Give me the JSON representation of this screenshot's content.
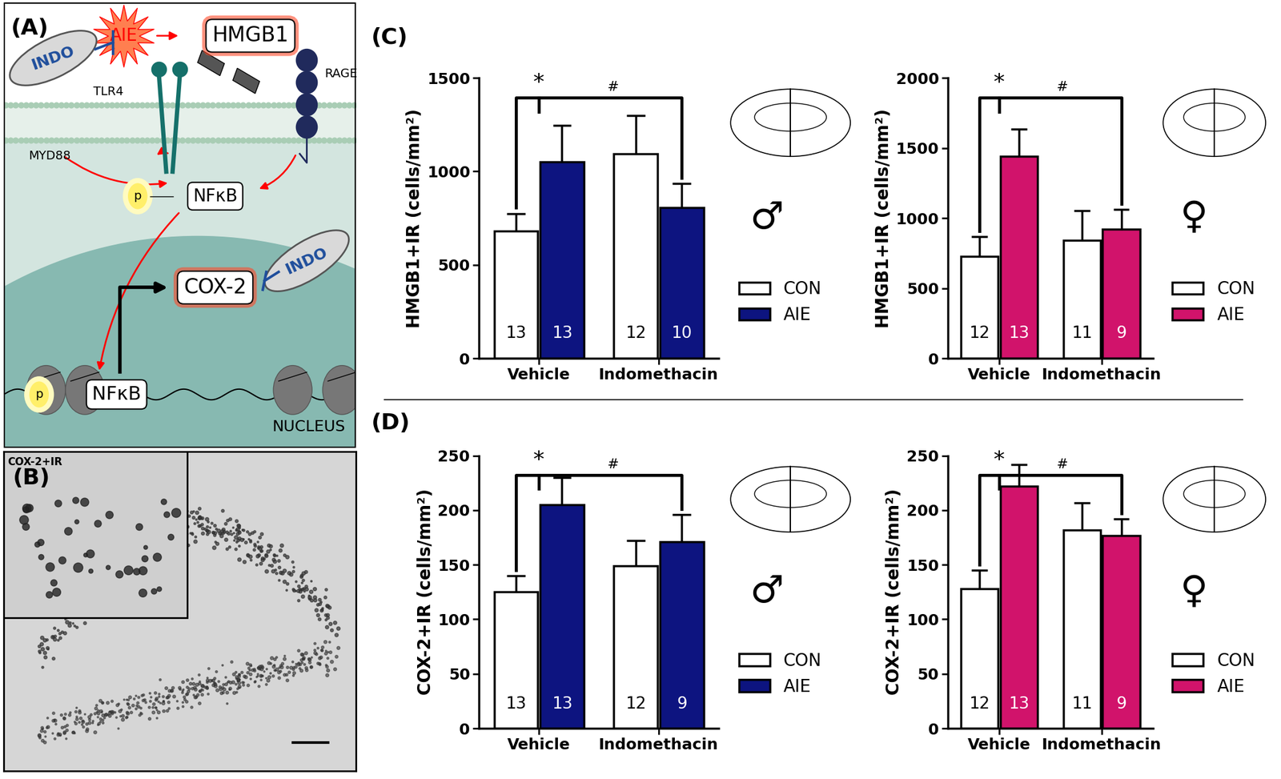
{
  "panel_labels": [
    "(A)",
    "(B)",
    "(C)",
    "(D)"
  ],
  "diagram": {
    "stimulus": "AIE",
    "ligand": "HMGB1",
    "drug": "INDO",
    "receptors": [
      "TLR4",
      "RAGE"
    ],
    "adaptor": "MYD88",
    "factor": "NFκB",
    "phospho": "p",
    "target": "COX-2",
    "compartment": "NUCLEUS"
  },
  "micrograph": {
    "label": "COX-2+IR"
  },
  "chart_data": [
    {
      "type": "bar",
      "ylabel": "HMGB1+IR (cells/mm²)",
      "symbol": "♂",
      "categories": [
        "Vehicle",
        "Indomethacin"
      ],
      "series": [
        {
          "name": "CON",
          "color": "#ffffff",
          "values": [
            680,
            1095
          ],
          "errors": [
            95,
            205
          ],
          "n": [
            13,
            12
          ]
        },
        {
          "name": "AIE",
          "color": "#0d1480",
          "values": [
            1050,
            805
          ],
          "errors": [
            195,
            130
          ],
          "n": [
            13,
            10
          ]
        }
      ],
      "ylim": [
        0,
        1500
      ],
      "yticks": [
        0,
        500,
        1000,
        1500
      ],
      "legend": "center left",
      "annotations": [
        "*",
        "#"
      ]
    },
    {
      "type": "bar",
      "ylabel": "HMGB1+IR (cells/mm²)",
      "symbol": "♀",
      "categories": [
        "Vehicle",
        "Indomethacin"
      ],
      "series": [
        {
          "name": "CON",
          "color": "#ffffff",
          "values": [
            725,
            840
          ],
          "errors": [
            145,
            215
          ],
          "n": [
            12,
            11
          ]
        },
        {
          "name": "AIE",
          "color": "#d1136b",
          "values": [
            1440,
            920
          ],
          "errors": [
            195,
            140
          ],
          "n": [
            13,
            9
          ]
        }
      ],
      "ylim": [
        0,
        2000
      ],
      "yticks": [
        0,
        500,
        1000,
        1500,
        2000
      ],
      "legend": "center left",
      "annotations": [
        "*",
        "#"
      ]
    },
    {
      "type": "bar",
      "ylabel": "COX-2+IR (cells/mm²)",
      "symbol": "♂",
      "categories": [
        "Vehicle",
        "Indomethacin"
      ],
      "series": [
        {
          "name": "CON",
          "color": "#ffffff",
          "values": [
            125,
            149
          ],
          "errors": [
            15,
            23
          ],
          "n": [
            13,
            12
          ]
        },
        {
          "name": "AIE",
          "color": "#0d1480",
          "values": [
            205,
            171
          ],
          "errors": [
            25,
            25
          ],
          "n": [
            13,
            9
          ]
        }
      ],
      "ylim": [
        0,
        250
      ],
      "yticks": [
        0,
        50,
        100,
        150,
        200,
        250
      ],
      "legend": "center left",
      "annotations": [
        "*",
        "#"
      ]
    },
    {
      "type": "bar",
      "ylabel": "COX-2+IR (cells/mm²)",
      "symbol": "♀",
      "categories": [
        "Vehicle",
        "Indomethacin"
      ],
      "series": [
        {
          "name": "CON",
          "color": "#ffffff",
          "values": [
            128,
            182
          ],
          "errors": [
            17,
            25
          ],
          "n": [
            12,
            11
          ]
        },
        {
          "name": "AIE",
          "color": "#d1136b",
          "values": [
            222,
            177
          ],
          "errors": [
            20,
            15
          ],
          "n": [
            13,
            9
          ]
        }
      ],
      "ylim": [
        0,
        250
      ],
      "yticks": [
        0,
        50,
        100,
        150,
        200,
        250
      ],
      "legend": "center left",
      "annotations": [
        "*",
        "#"
      ]
    }
  ]
}
